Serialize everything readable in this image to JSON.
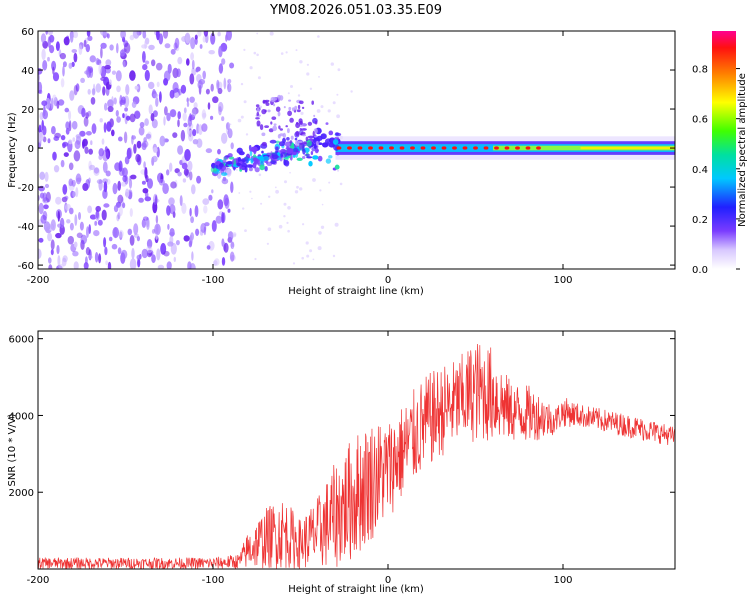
{
  "title": "YM08.2026.051.03.35.E09",
  "chart_data": [
    {
      "type": "heatmap",
      "name": "spectrogram",
      "xlabel": "Height of straight line (km)",
      "ylabel": "Frequency (Hz)",
      "xlim": [
        -200,
        164
      ],
      "ylim": [
        -62,
        60
      ],
      "xticks": [
        -200,
        -100,
        0,
        100
      ],
      "yticks": [
        -60,
        -40,
        -20,
        0,
        20,
        40,
        60
      ],
      "noise_region": {
        "x": [
          -200,
          -88
        ],
        "y": [
          -62,
          60
        ]
      },
      "transition_region": {
        "x": [
          -100,
          -30
        ],
        "center_start": -10,
        "center_end": 5
      },
      "signal_band": {
        "x": [
          -30,
          164
        ],
        "center": 0,
        "halfwidth": 3
      },
      "peak_markers_x": [
        -28,
        -22,
        -16,
        -10,
        -4,
        2,
        8,
        14,
        20,
        26,
        32,
        38,
        44,
        50,
        56,
        62,
        68,
        74,
        80,
        86
      ],
      "colorbar": {
        "label": "Normalized spectral amplitude",
        "range": [
          0,
          0.95
        ],
        "ticks": [
          0.0,
          0.2,
          0.4,
          0.6,
          0.8
        ],
        "tick_labels": [
          "0.0",
          "0.2",
          "0.4",
          "0.6",
          "0.8"
        ]
      }
    },
    {
      "type": "line",
      "name": "snr",
      "xlabel": "Height of straight line (km)",
      "ylabel": "SNR (10 * V/V)",
      "xlim": [
        -200,
        164
      ],
      "ylim": [
        0,
        6200
      ],
      "xticks": [
        -200,
        -100,
        0,
        100
      ],
      "yticks": [
        2000,
        4000,
        6000
      ],
      "series": [
        {
          "name": "SNR",
          "color": "#ee3333",
          "envelope_x": [
            -200,
            -150,
            -100,
            -85,
            -80,
            -70,
            -60,
            -50,
            -40,
            -30,
            -20,
            -10,
            0,
            10,
            20,
            30,
            40,
            50,
            60,
            70,
            80,
            90,
            95,
            100,
            110,
            120,
            130,
            140,
            150,
            164
          ],
          "envelope_lo": [
            0,
            0,
            0,
            0,
            0,
            0,
            0,
            0,
            0,
            0,
            200,
            700,
            1300,
            1900,
            2500,
            2900,
            3200,
            3300,
            3300,
            3300,
            3300,
            3400,
            3500,
            3700,
            3700,
            3600,
            3500,
            3400,
            3300,
            3200
          ],
          "envelope_hi": [
            300,
            300,
            300,
            400,
            1000,
            1600,
            1900,
            1300,
            1900,
            2800,
            3500,
            3900,
            3900,
            4400,
            5000,
            5300,
            5500,
            6000,
            5800,
            4900,
            4800,
            4500,
            4200,
            4500,
            4300,
            4200,
            4100,
            4000,
            3900,
            3700
          ]
        }
      ]
    }
  ]
}
